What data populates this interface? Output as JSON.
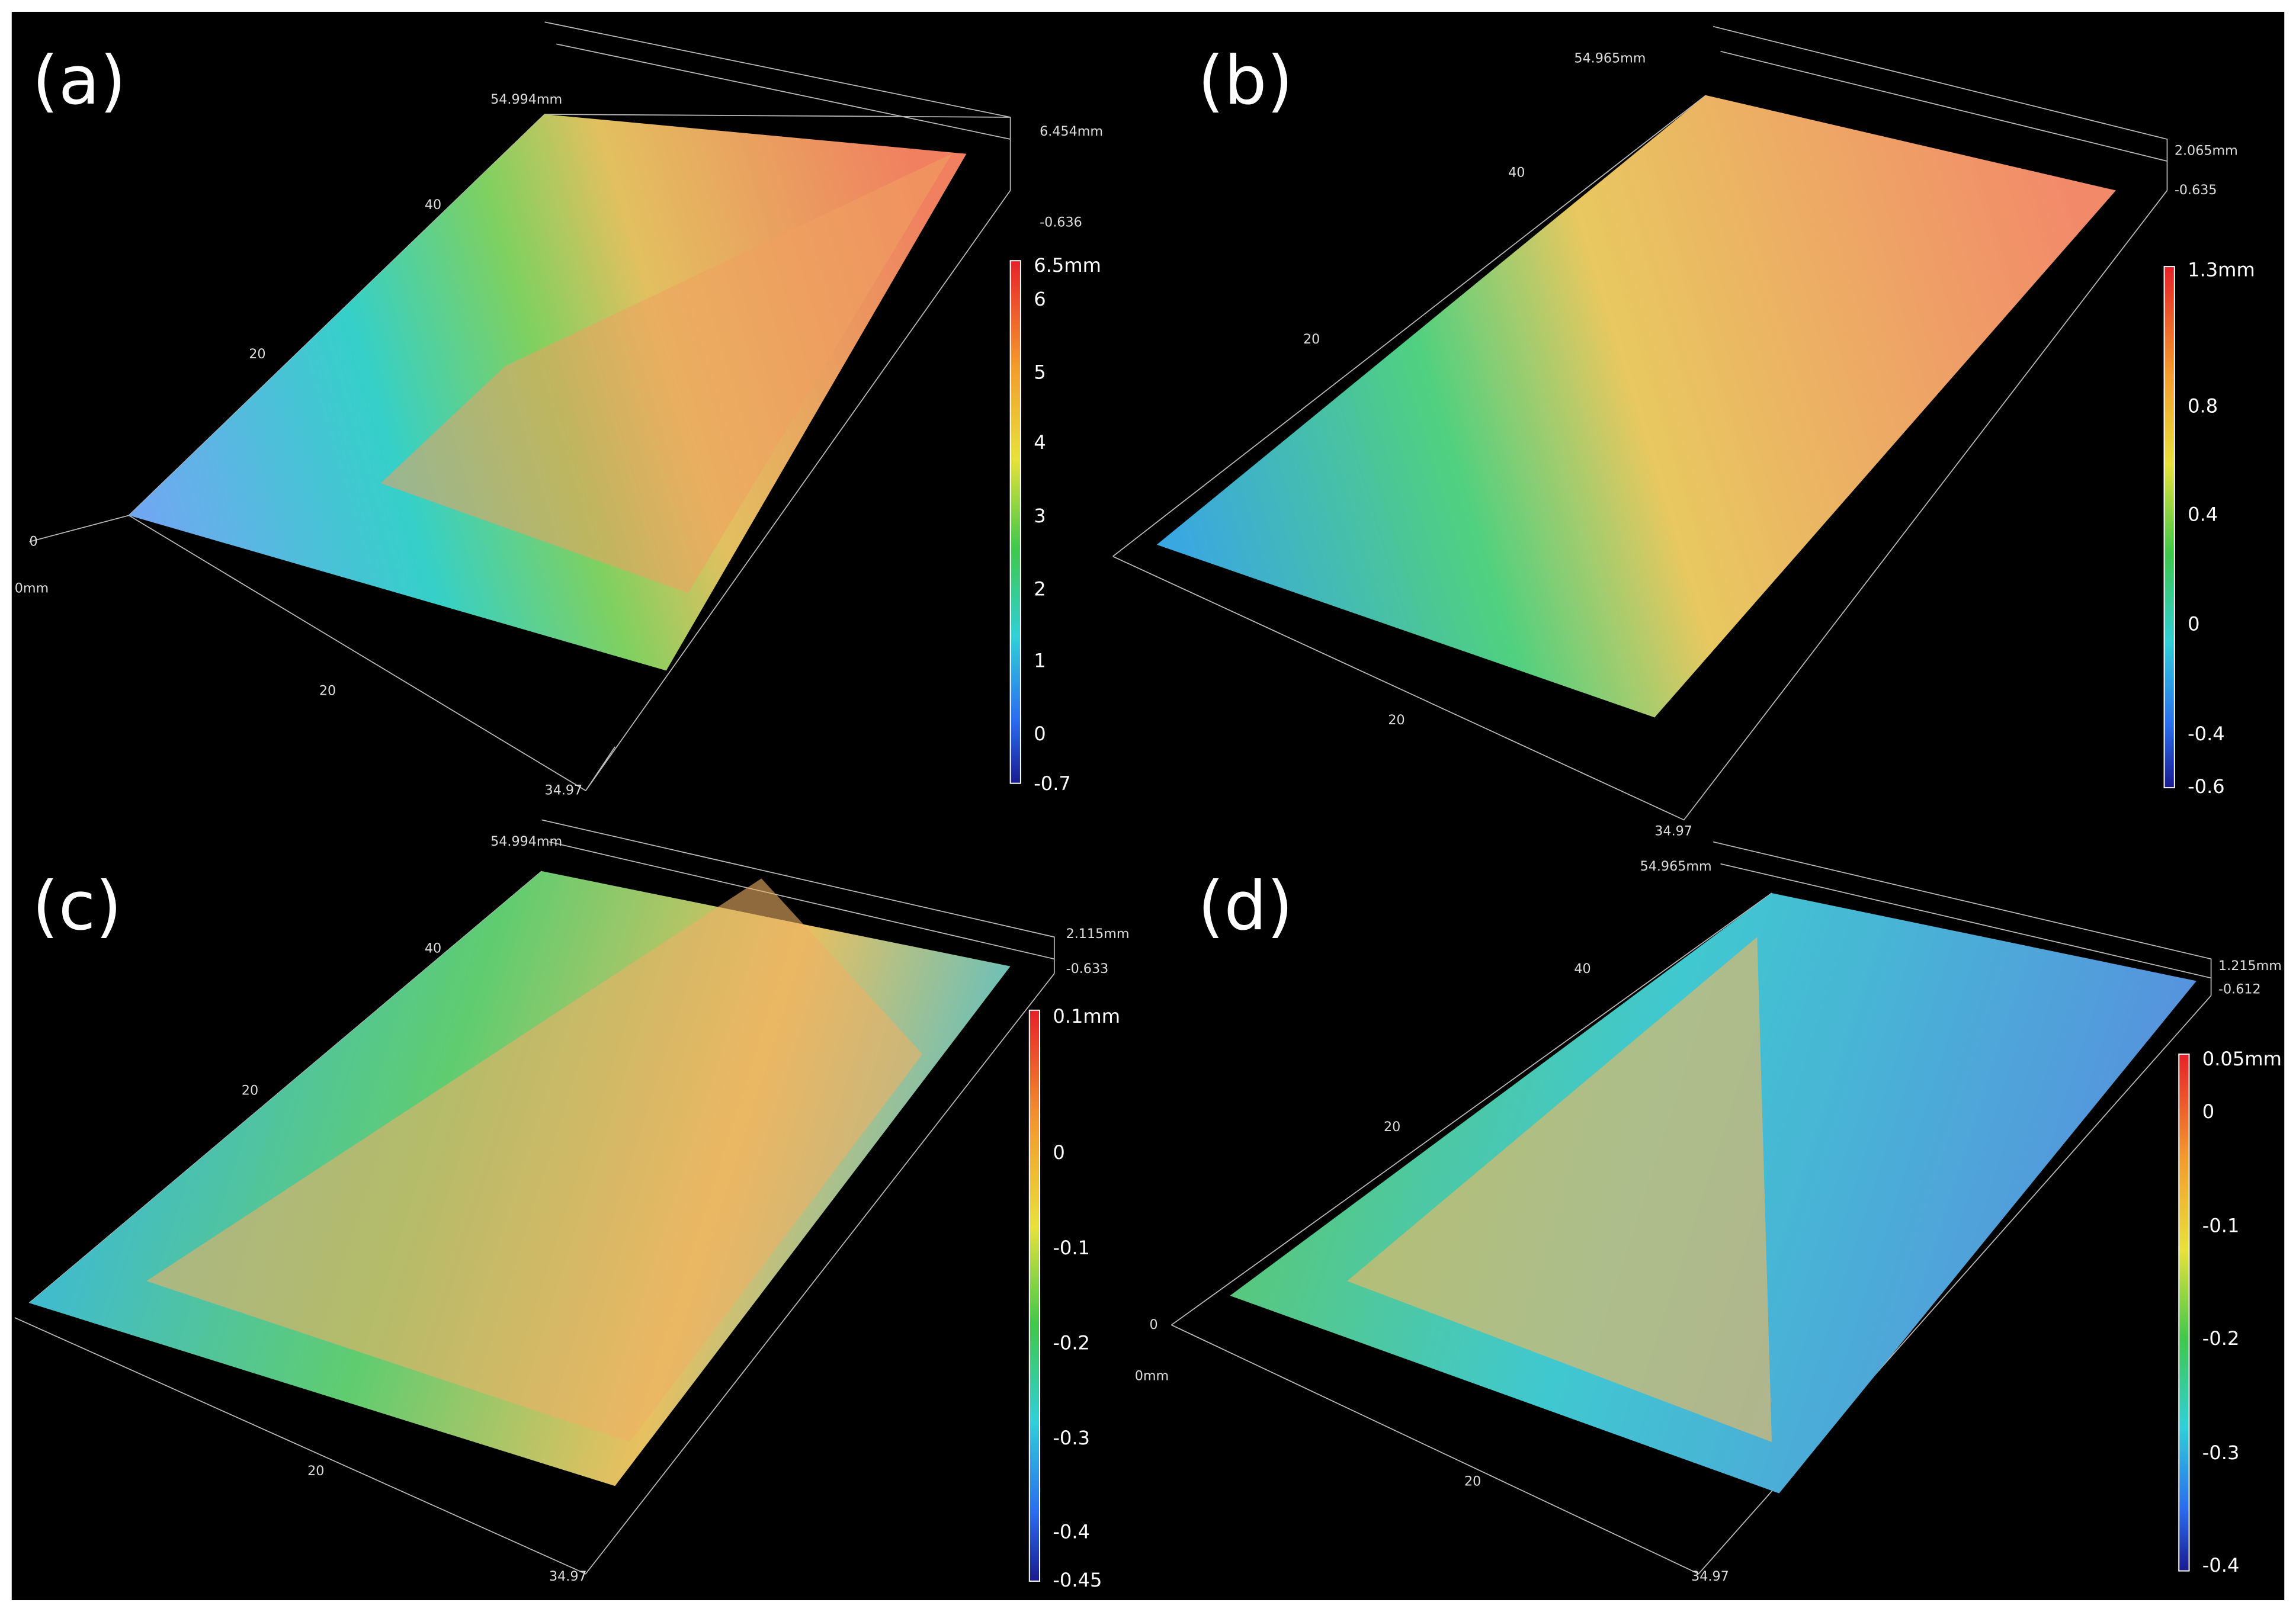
{
  "panels": [
    {
      "label": "(a)",
      "axis_labels": [
        "54.994mm",
        "40",
        "20",
        "0",
        "0mm",
        "20",
        "34.97"
      ],
      "z_labels": [
        "6.454mm",
        "-0.636"
      ],
      "colorbar": [
        "6.5mm",
        "6",
        "5",
        "4",
        "3",
        "2",
        "1",
        "0",
        "-0.7"
      ]
    },
    {
      "label": "(b)",
      "axis_labels": [
        "54.965mm",
        "40",
        "20",
        "20",
        "34.97"
      ],
      "z_labels": [
        "2.065mm",
        "-0.635"
      ],
      "colorbar": [
        "1.3mm",
        "0.8",
        "0.4",
        "0",
        "-0.4",
        "-0.6"
      ]
    },
    {
      "label": "(c)",
      "axis_labels": [
        "54.994mm",
        "40",
        "20",
        "20",
        "34.97"
      ],
      "z_labels": [
        "2.115mm",
        "-0.633"
      ],
      "colorbar": [
        "0.1mm",
        "0",
        "-0.1",
        "-0.2",
        "-0.3",
        "-0.4",
        "-0.45"
      ]
    },
    {
      "label": "(d)",
      "axis_labels": [
        "54.965mm",
        "40",
        "20",
        "0",
        "0mm",
        "20",
        "34.97"
      ],
      "z_labels": [
        "1.215mm",
        "-0.612"
      ],
      "colorbar": [
        "0.05mm",
        "0",
        "-0.1",
        "-0.2",
        "-0.3",
        "-0.4"
      ]
    }
  ]
}
